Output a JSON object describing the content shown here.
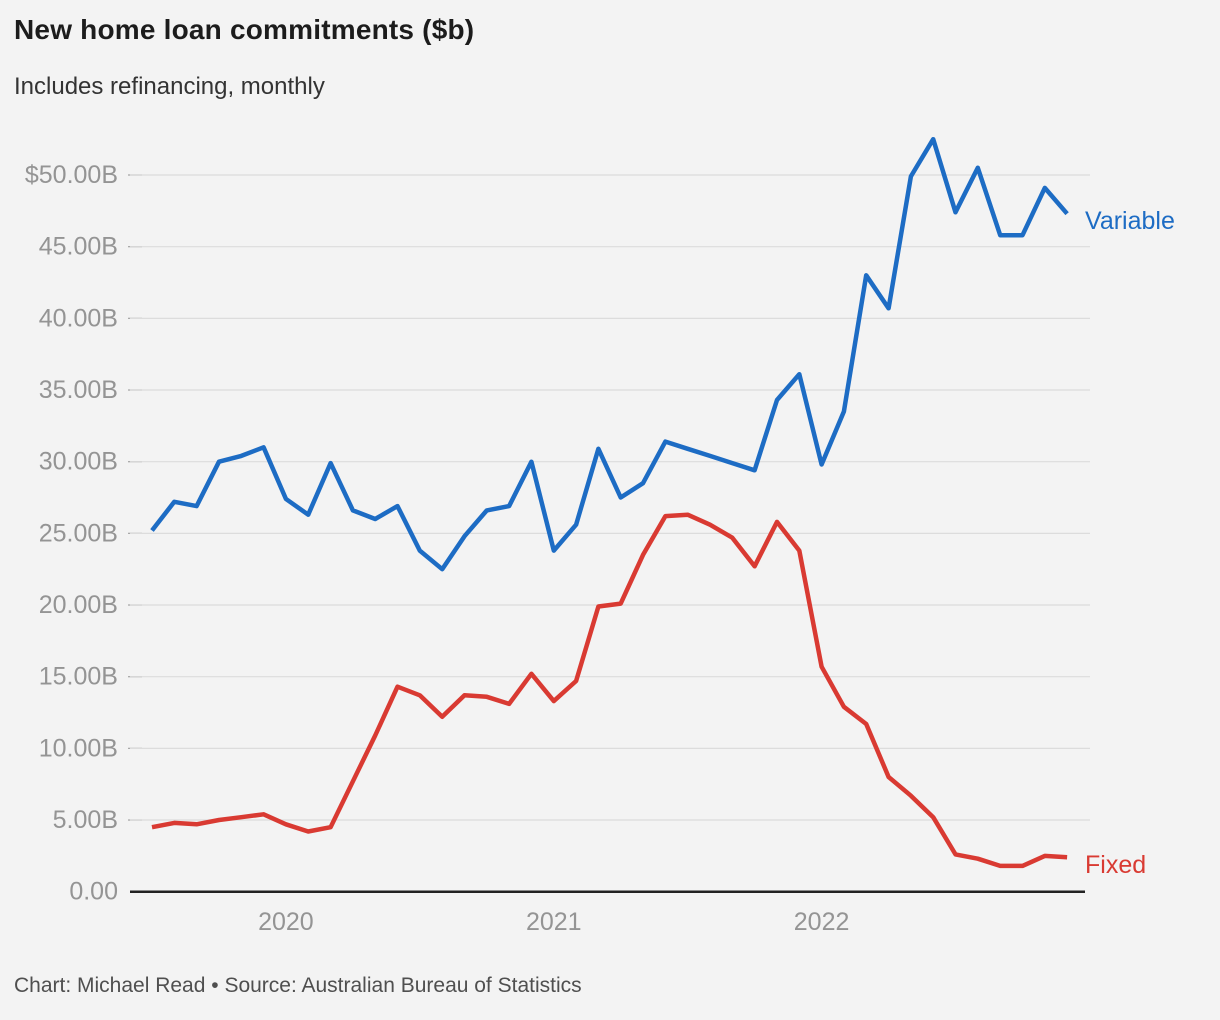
{
  "header": {
    "title": "New home loan commitments ($b)",
    "subtitle": "Includes refinancing, monthly"
  },
  "footer": {
    "credit": "Chart: Michael Read • Source: Australian Bureau of Statistics"
  },
  "colors": {
    "variable_blue": "#1d6cc4",
    "fixed_red": "#d93a32",
    "grid": "#dcdcdc",
    "axis": "#222222",
    "tick": "#a9a9a9",
    "axis_text": "#949494",
    "background": "#f3f3f3",
    "title_text": "#1c1c1c",
    "subtitle_text": "#333333",
    "credit_text": "#4f4f4f"
  },
  "chart_data": {
    "type": "line",
    "title": "New home loan commitments ($b)",
    "subtitle": "Includes refinancing, monthly",
    "xlabel": "",
    "ylabel": "",
    "ylim": [
      0,
      52.5
    ],
    "grid": "horizontal",
    "legend_position": "direct-labels-right",
    "x": [
      "2019-07",
      "2019-08",
      "2019-09",
      "2019-10",
      "2019-11",
      "2019-12",
      "2020-01",
      "2020-02",
      "2020-03",
      "2020-04",
      "2020-05",
      "2020-06",
      "2020-07",
      "2020-08",
      "2020-09",
      "2020-10",
      "2020-11",
      "2020-12",
      "2021-01",
      "2021-02",
      "2021-03",
      "2021-04",
      "2021-05",
      "2021-06",
      "2021-07",
      "2021-08",
      "2021-09",
      "2021-10",
      "2021-11",
      "2021-12",
      "2022-01",
      "2022-02",
      "2022-03",
      "2022-04",
      "2022-05",
      "2022-06",
      "2022-07",
      "2022-08",
      "2022-09",
      "2022-10",
      "2022-11",
      "2022-12"
    ],
    "x_axis": {
      "ticks": [
        {
          "label": "2020",
          "month": "2020-01"
        },
        {
          "label": "2021",
          "month": "2021-01"
        },
        {
          "label": "2022",
          "month": "2022-01"
        }
      ]
    },
    "y_axis": {
      "ticks": [
        {
          "label": "$50.00B",
          "value": 50
        },
        {
          "label": "45.00B",
          "value": 45
        },
        {
          "label": "40.00B",
          "value": 40
        },
        {
          "label": "35.00B",
          "value": 35
        },
        {
          "label": "30.00B",
          "value": 30
        },
        {
          "label": "25.00B",
          "value": 25
        },
        {
          "label": "20.00B",
          "value": 20
        },
        {
          "label": "15.00B",
          "value": 15
        },
        {
          "label": "10.00B",
          "value": 10
        },
        {
          "label": "5.00B",
          "value": 5
        },
        {
          "label": "0.00",
          "value": 0
        }
      ]
    },
    "series": [
      {
        "name": "Variable",
        "color": "#1d6cc4",
        "values": [
          25.2,
          27.2,
          26.9,
          30.0,
          30.4,
          31.0,
          27.4,
          26.3,
          29.9,
          26.6,
          26.0,
          26.9,
          23.8,
          22.5,
          24.8,
          26.6,
          26.9,
          30.0,
          23.8,
          25.6,
          30.9,
          27.5,
          28.5,
          31.4,
          30.9,
          30.4,
          29.9,
          29.4,
          34.3,
          36.1,
          29.8,
          33.5,
          43.0,
          40.7,
          49.9,
          52.5,
          47.4,
          50.5,
          45.8,
          45.8,
          49.1,
          47.3
        ]
      },
      {
        "name": "Fixed",
        "color": "#d93a32",
        "values": [
          4.5,
          4.8,
          4.7,
          5.0,
          5.2,
          5.4,
          4.7,
          4.2,
          4.5,
          7.7,
          10.9,
          14.3,
          13.7,
          12.2,
          13.7,
          13.6,
          13.1,
          15.2,
          13.3,
          14.7,
          19.9,
          20.1,
          23.5,
          26.2,
          26.3,
          25.6,
          24.7,
          22.7,
          25.8,
          23.8,
          15.7,
          12.9,
          11.7,
          8.0,
          6.7,
          5.2,
          2.6,
          2.3,
          1.8,
          1.8,
          2.5,
          2.4
        ]
      }
    ]
  }
}
